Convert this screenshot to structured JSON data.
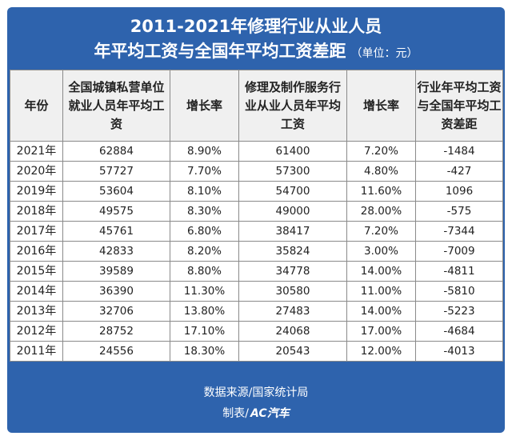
{
  "title": {
    "line1": "2011-2021年修理行业从业人员",
    "line2": "年平均工资与全国年平均工资差距",
    "unit": "（单位：元）"
  },
  "table": {
    "headers": [
      "年份",
      "全国城镇私营单位就业人员年平均工资",
      "增长率",
      "修理及制作服务行业从业人员年平均工资",
      "增长率",
      "行业年平均工资与全国年平均工资差距"
    ],
    "rows": [
      [
        "2021年",
        "62884",
        "8.90%",
        "61400",
        "7.20%",
        "-1484"
      ],
      [
        "2020年",
        "57727",
        "7.70%",
        "57300",
        "4.80%",
        "-427"
      ],
      [
        "2019年",
        "53604",
        "8.10%",
        "54700",
        "11.60%",
        "1096"
      ],
      [
        "2018年",
        "49575",
        "8.30%",
        "49000",
        "28.00%",
        "-575"
      ],
      [
        "2017年",
        "45761",
        "6.80%",
        "38417",
        "7.20%",
        "-7344"
      ],
      [
        "2016年",
        "42833",
        "8.20%",
        "35824",
        "3.00%",
        "-7009"
      ],
      [
        "2015年",
        "39589",
        "8.80%",
        "34778",
        "14.00%",
        "-4811"
      ],
      [
        "2014年",
        "36390",
        "11.30%",
        "30580",
        "11.00%",
        "-5810"
      ],
      [
        "2013年",
        "32706",
        "13.80%",
        "27483",
        "14.00%",
        "-5223"
      ],
      [
        "2012年",
        "28752",
        "17.10%",
        "24068",
        "17.00%",
        "-4684"
      ],
      [
        "2011年",
        "24556",
        "18.30%",
        "20543",
        "12.00%",
        "-4013"
      ]
    ]
  },
  "footer": {
    "source": "数据来源/国家统计局",
    "made_by_label": "制表/",
    "brand": "AC汽车"
  },
  "colors": {
    "banner": "#2e63ad",
    "header_bg": "#f0f0f0",
    "grid": "#8a8a8a"
  }
}
